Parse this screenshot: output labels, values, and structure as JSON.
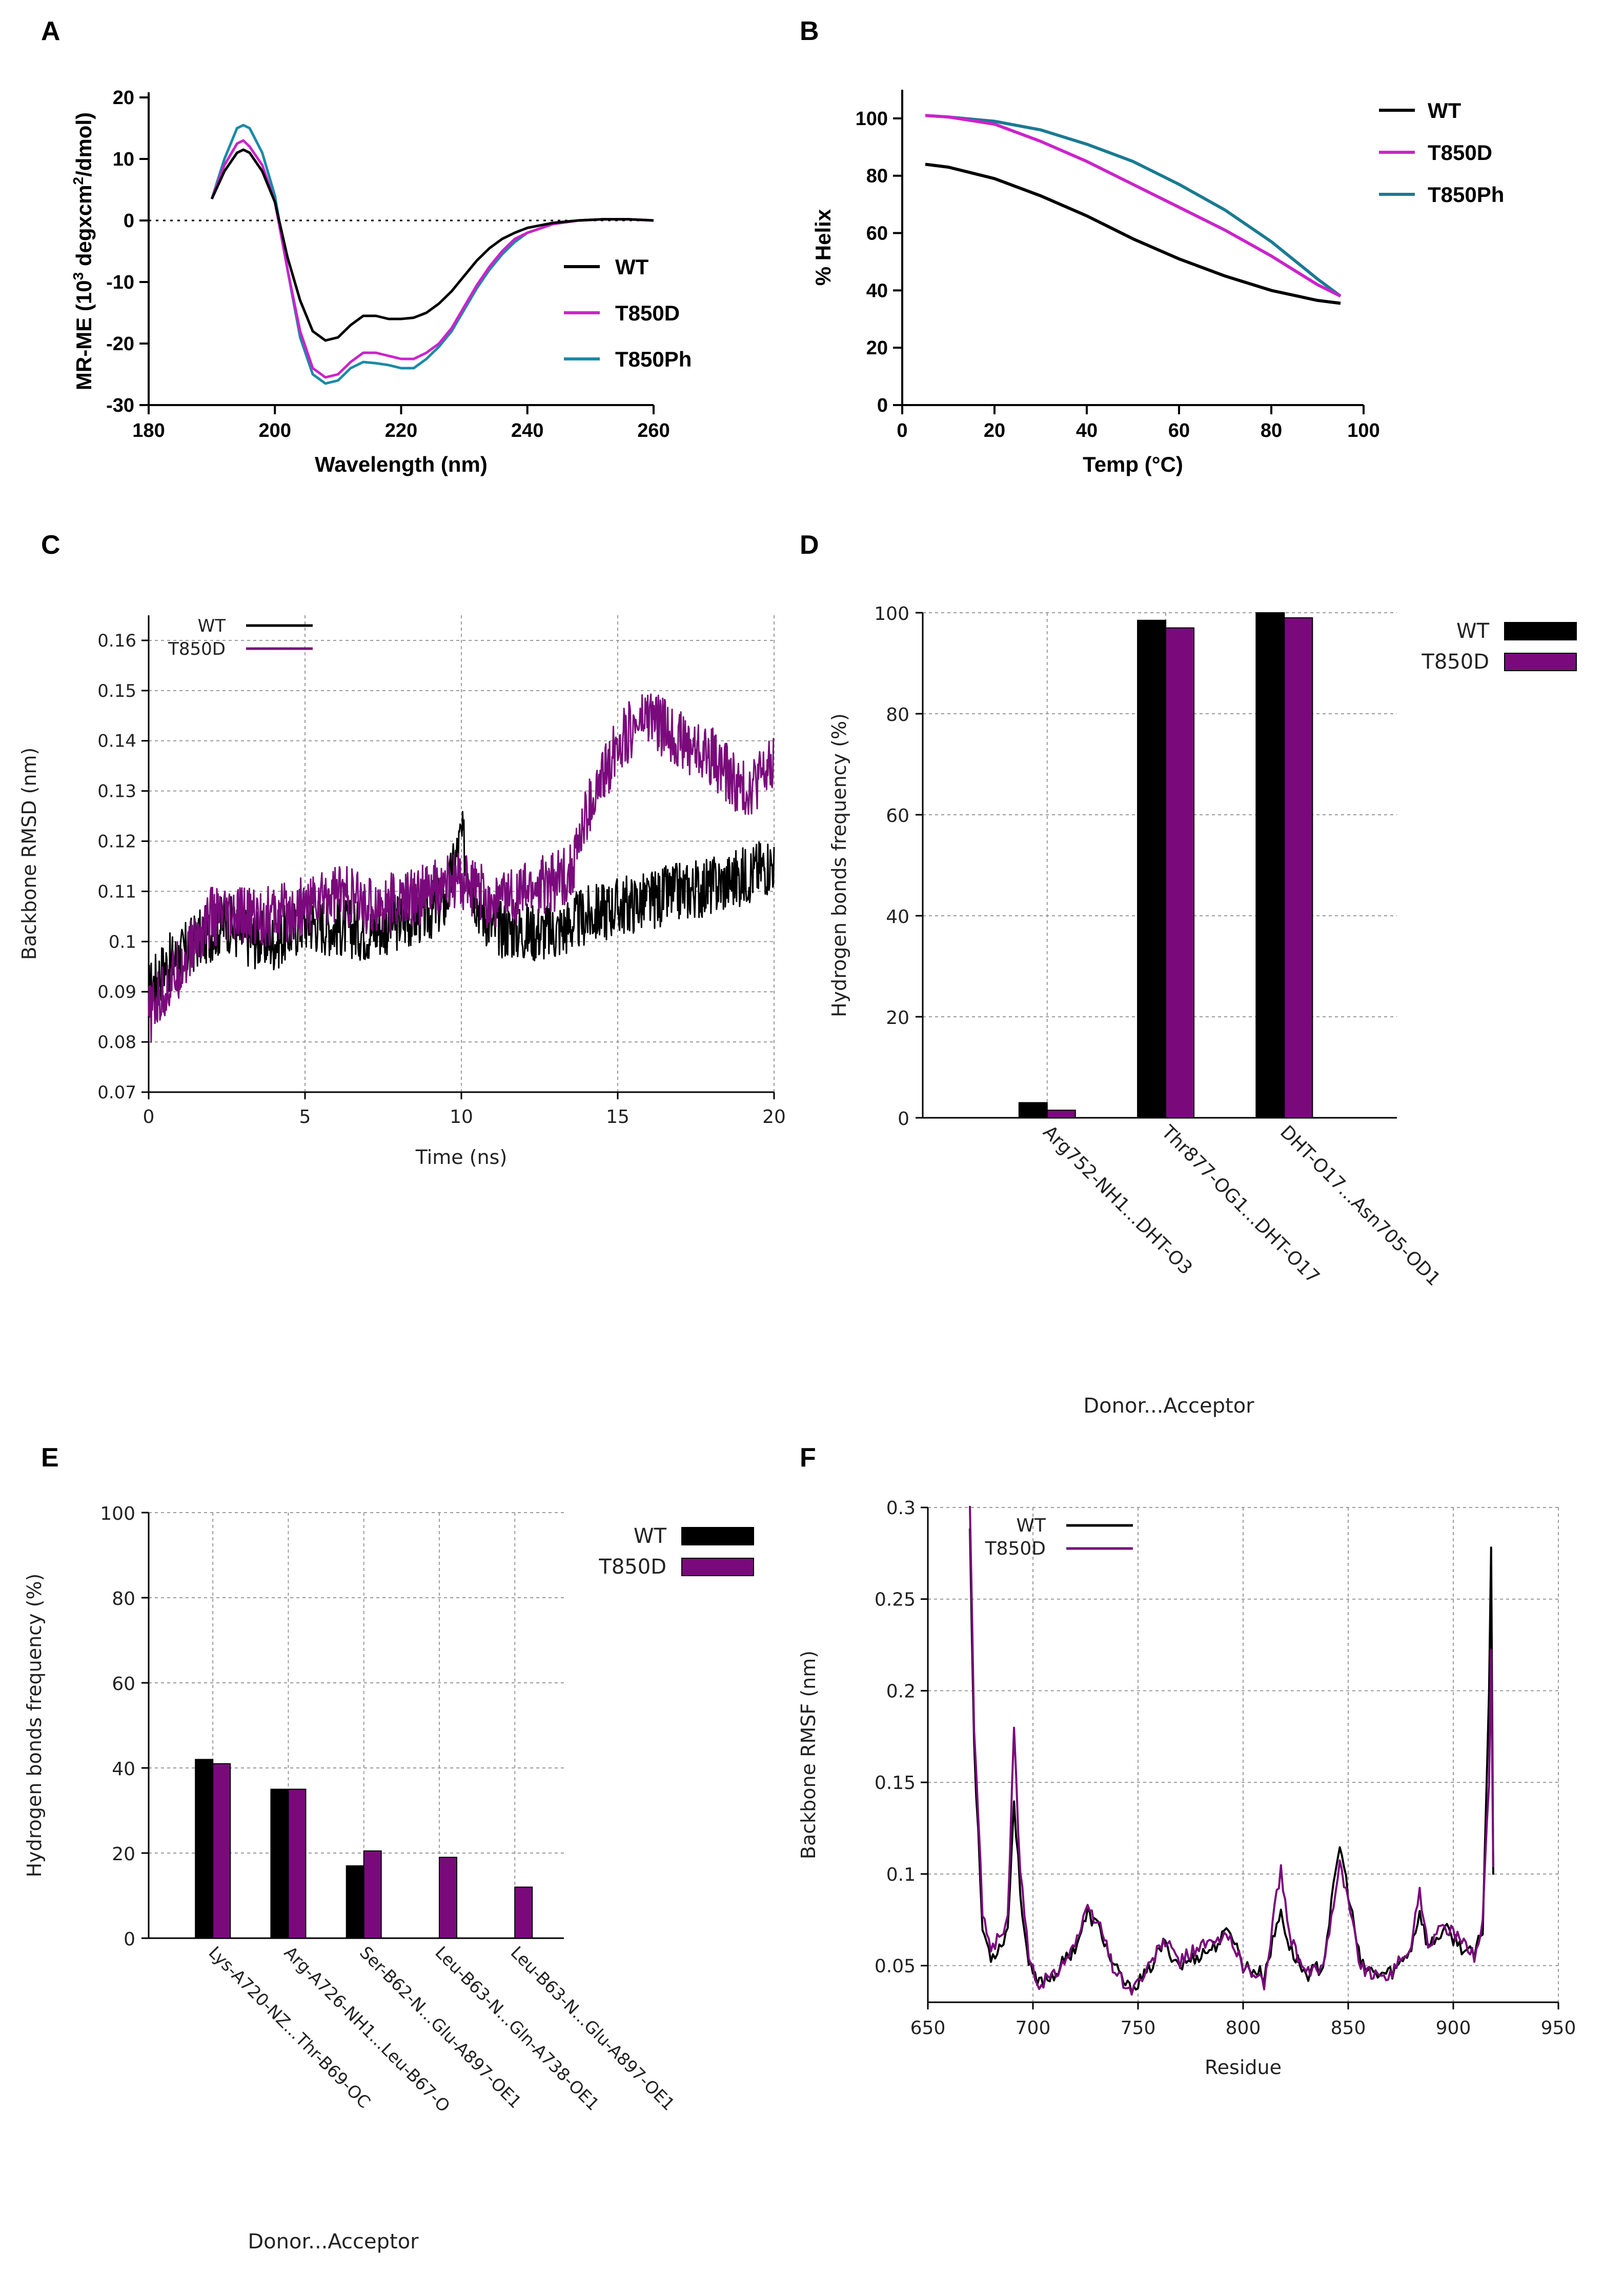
{
  "colors": {
    "wt": "#000000",
    "t850d_ab": "#cc22cc",
    "t850ph_ab": "#1a8aa8",
    "t850ph_b": "#1a7a92",
    "t850d_md": "#7a0a7c"
  },
  "chart_data": [
    {
      "panel": "A",
      "type": "line",
      "xlabel": "Wavelength (nm)",
      "ylabel_main": "MR-ME (10",
      "ylabel_sup": "3",
      "ylabel_mid": " degxcm",
      "ylabel_sup2": "2",
      "ylabel_tail": "/dmol)",
      "xlim": [
        180,
        260
      ],
      "ylim": [
        -30,
        20
      ],
      "xticks": [
        "180",
        "200",
        "220",
        "240",
        "260"
      ],
      "yticks": [
        "20",
        "10",
        "0",
        "-10",
        "-20",
        "-30"
      ],
      "legend": [
        "WT",
        "T850D",
        "T850Ph"
      ],
      "series": [
        {
          "name": "WT",
          "x": [
            190,
            192,
            194,
            195,
            196,
            198,
            200,
            202,
            204,
            206,
            208,
            210,
            212,
            214,
            216,
            218,
            220,
            222,
            224,
            226,
            228,
            230,
            232,
            234,
            236,
            238,
            240,
            244,
            248,
            252,
            256,
            260
          ],
          "y": [
            3.5,
            8,
            11,
            11.5,
            11,
            8,
            3,
            -6,
            -13,
            -18,
            -19.5,
            -19,
            -17,
            -15.5,
            -15.5,
            -16,
            -16,
            -15.8,
            -15,
            -13.5,
            -11.5,
            -9,
            -6.5,
            -4.5,
            -3,
            -2,
            -1.2,
            -0.4,
            0,
            0.2,
            0.2,
            0
          ]
        },
        {
          "name": "T850D",
          "x": [
            190,
            192,
            194,
            195,
            196,
            198,
            200,
            202,
            204,
            206,
            208,
            210,
            212,
            214,
            216,
            218,
            220,
            222,
            224,
            226,
            228,
            230,
            232,
            234,
            236,
            238,
            240,
            244,
            248,
            252,
            256,
            260
          ],
          "y": [
            3.5,
            9,
            12.5,
            13,
            12,
            9,
            3,
            -8,
            -18,
            -24,
            -25.5,
            -25,
            -23,
            -21.5,
            -21.5,
            -22,
            -22.5,
            -22.5,
            -21.5,
            -20,
            -17.5,
            -14,
            -10.5,
            -7.5,
            -5,
            -3,
            -2,
            -0.6,
            0,
            0.2,
            0.2,
            0
          ]
        },
        {
          "name": "T850Ph",
          "x": [
            190,
            192,
            194,
            195,
            196,
            198,
            200,
            202,
            204,
            206,
            208,
            210,
            212,
            214,
            216,
            218,
            220,
            222,
            224,
            226,
            228,
            230,
            232,
            234,
            236,
            238,
            240,
            244,
            248,
            252,
            256,
            260
          ],
          "y": [
            3.5,
            10,
            15,
            15.5,
            15,
            11,
            4,
            -8,
            -19,
            -25,
            -26.5,
            -26,
            -24,
            -23,
            -23.2,
            -23.5,
            -24,
            -24,
            -22.5,
            -20.5,
            -18,
            -14.5,
            -11,
            -8,
            -5.5,
            -3.5,
            -2,
            -0.6,
            0,
            0.2,
            0.2,
            0
          ]
        }
      ]
    },
    {
      "panel": "B",
      "type": "line",
      "xlabel": "Temp (°C)",
      "ylabel": "% Helix",
      "xlim": [
        0,
        100
      ],
      "ylim": [
        0,
        110
      ],
      "xticks": [
        "0",
        "20",
        "40",
        "60",
        "80",
        "100"
      ],
      "yticks": [
        "0",
        "20",
        "40",
        "60",
        "80",
        "100"
      ],
      "legend": [
        "WT",
        "T850D",
        "T850Ph"
      ],
      "series": [
        {
          "name": "WT",
          "x": [
            5,
            10,
            20,
            30,
            40,
            50,
            60,
            70,
            80,
            90,
            95
          ],
          "y": [
            84,
            83,
            79,
            73,
            66,
            58,
            51,
            45,
            40,
            36.5,
            35.5
          ]
        },
        {
          "name": "T850D",
          "x": [
            5,
            10,
            20,
            30,
            40,
            50,
            60,
            70,
            80,
            90,
            95
          ],
          "y": [
            101,
            100.5,
            98,
            92,
            85,
            77,
            69,
            61,
            52,
            42,
            38
          ]
        },
        {
          "name": "T850Ph",
          "x": [
            5,
            10,
            20,
            30,
            40,
            50,
            60,
            70,
            80,
            90,
            95
          ],
          "y": [
            101,
            100.5,
            99,
            96,
            91,
            85,
            77,
            68,
            57,
            44,
            38
          ]
        }
      ]
    },
    {
      "panel": "C",
      "type": "line",
      "xlabel": "Time (ns)",
      "ylabel": "Backbone RMSD (nm)",
      "xlim": [
        0,
        20
      ],
      "ylim": [
        0.07,
        0.165
      ],
      "xticks": [
        "0",
        "5",
        "10",
        "15",
        "20"
      ],
      "yticks": [
        "0.07",
        "0.08",
        "0.09",
        "0.1",
        "0.11",
        "0.12",
        "0.13",
        "0.14",
        "0.15",
        "0.16"
      ],
      "legend": [
        "WT",
        "T850D"
      ],
      "series": [
        {
          "name": "WT",
          "x": [
            0,
            0.5,
            1,
            1.5,
            2,
            2.5,
            3,
            4,
            5,
            6,
            7,
            8,
            9,
            9.5,
            10,
            10.5,
            11,
            12,
            13,
            14,
            15,
            16,
            17,
            18,
            19,
            20
          ],
          "y": [
            0.09,
            0.095,
            0.097,
            0.1,
            0.102,
            0.104,
            0.101,
            0.1,
            0.104,
            0.103,
            0.102,
            0.104,
            0.106,
            0.108,
            0.121,
            0.108,
            0.103,
            0.102,
            0.102,
            0.105,
            0.107,
            0.108,
            0.11,
            0.111,
            0.113,
            0.116
          ]
        },
        {
          "name": "T850D",
          "x": [
            0,
            0.5,
            1,
            1.5,
            2,
            2.5,
            3,
            4,
            5,
            6,
            7,
            8,
            9,
            10,
            11,
            12,
            13,
            13.5,
            14,
            14.5,
            15,
            16,
            17,
            18,
            19,
            20
          ],
          "y": [
            0.085,
            0.09,
            0.095,
            0.1,
            0.105,
            0.104,
            0.105,
            0.105,
            0.107,
            0.11,
            0.107,
            0.108,
            0.11,
            0.112,
            0.108,
            0.11,
            0.112,
            0.114,
            0.125,
            0.132,
            0.14,
            0.145,
            0.14,
            0.137,
            0.13,
            0.135
          ]
        }
      ]
    },
    {
      "panel": "D",
      "type": "bar",
      "xlabel": "Donor...Acceptor",
      "ylabel": "Hydrogen bonds frequency (%)",
      "ylim": [
        0,
        100
      ],
      "yticks": [
        "0",
        "20",
        "40",
        "60",
        "80",
        "100"
      ],
      "categories": [
        "Arg752-NH1...DHT-O3",
        "Thr877-OG1...DHT-O17",
        "DHT-O17...Asn705-OD1"
      ],
      "legend": [
        "WT",
        "T850D"
      ],
      "series": [
        {
          "name": "WT",
          "values": [
            3,
            98.5,
            100
          ]
        },
        {
          "name": "T850D",
          "values": [
            1.5,
            97,
            99
          ]
        }
      ]
    },
    {
      "panel": "E",
      "type": "bar",
      "xlabel": "Donor...Acceptor",
      "ylabel": "Hydrogen bonds frequency (%)",
      "ylim": [
        0,
        100
      ],
      "yticks": [
        "0",
        "20",
        "40",
        "60",
        "80",
        "100"
      ],
      "categories": [
        "Lys-A720-NZ...Thr-B69-OC",
        "Arg-A726-NH1...Leu-B67-O",
        "Ser-B62-N...Glu-A897-OE1",
        "Leu-B63-N...Gln-A738-OE1",
        "Leu-B63-N...Glu-A897-OE1"
      ],
      "legend": [
        "WT",
        "T850D"
      ],
      "series": [
        {
          "name": "WT",
          "values": [
            42,
            35,
            17,
            0,
            0
          ]
        },
        {
          "name": "T850D",
          "values": [
            41,
            35,
            20.5,
            19,
            12
          ]
        }
      ]
    },
    {
      "panel": "F",
      "type": "line",
      "xlabel": "Residue",
      "ylabel": "Backbone RMSF (nm)",
      "xlim": [
        650,
        950
      ],
      "ylim": [
        0.03,
        0.3
      ],
      "xticks": [
        "650",
        "700",
        "750",
        "800",
        "850",
        "900",
        "950"
      ],
      "yticks": [
        "0.05",
        "0.1",
        "0.15",
        "0.2",
        "0.25",
        "0.3"
      ],
      "legend": [
        "WT",
        "T850D"
      ],
      "series": [
        {
          "name": "WT",
          "x": [
            670,
            672,
            676,
            680,
            684,
            688,
            691,
            694,
            698,
            702,
            710,
            720,
            726,
            732,
            738,
            746,
            754,
            762,
            770,
            778,
            786,
            794,
            800,
            810,
            818,
            822,
            830,
            838,
            846,
            850,
            856,
            864,
            872,
            880,
            884,
            888,
            896,
            904,
            910,
            914,
            917,
            918,
            919
          ],
          "y": [
            0.29,
            0.17,
            0.07,
            0.055,
            0.06,
            0.07,
            0.14,
            0.09,
            0.05,
            0.04,
            0.045,
            0.06,
            0.078,
            0.07,
            0.05,
            0.037,
            0.045,
            0.062,
            0.05,
            0.055,
            0.06,
            0.07,
            0.05,
            0.045,
            0.08,
            0.06,
            0.045,
            0.05,
            0.116,
            0.09,
            0.05,
            0.045,
            0.047,
            0.06,
            0.08,
            0.06,
            0.07,
            0.06,
            0.055,
            0.07,
            0.2,
            0.276,
            0.1
          ]
        },
        {
          "name": "T850D",
          "x": [
            670,
            672,
            676,
            680,
            684,
            688,
            691,
            694,
            698,
            702,
            710,
            720,
            726,
            732,
            738,
            746,
            754,
            762,
            770,
            778,
            786,
            794,
            800,
            810,
            818,
            822,
            830,
            838,
            846,
            850,
            856,
            864,
            872,
            880,
            884,
            888,
            896,
            904,
            910,
            914,
            917,
            918,
            919
          ],
          "y": [
            0.3,
            0.18,
            0.08,
            0.06,
            0.065,
            0.075,
            0.178,
            0.1,
            0.055,
            0.04,
            0.045,
            0.062,
            0.08,
            0.072,
            0.05,
            0.036,
            0.046,
            0.064,
            0.052,
            0.06,
            0.062,
            0.066,
            0.05,
            0.04,
            0.104,
            0.065,
            0.045,
            0.05,
            0.106,
            0.085,
            0.05,
            0.043,
            0.048,
            0.062,
            0.09,
            0.062,
            0.072,
            0.062,
            0.056,
            0.075,
            0.15,
            0.22,
            0.1
          ]
        }
      ]
    }
  ]
}
